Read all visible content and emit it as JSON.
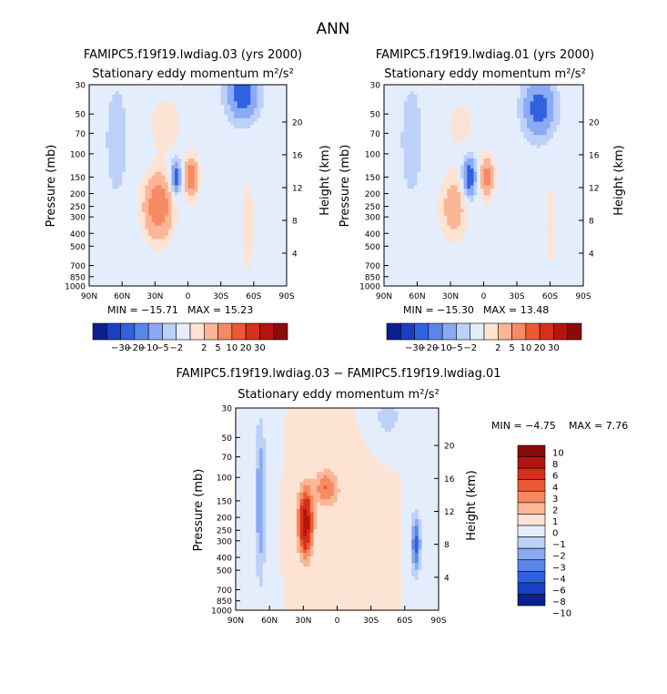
{
  "page_title": "ANN",
  "palette": {
    "cb_top": [
      "#0b1f8f",
      "#1a3fc4",
      "#2f62e0",
      "#5a86ec",
      "#8aaaf3",
      "#bcd0f8",
      "#e4edfc",
      "#fde3d4",
      "#fab696",
      "#f68a63",
      "#eb5a32",
      "#d6301a",
      "#b5150f",
      "#8a0b0b"
    ],
    "cb_diff": [
      "#8a0b0b",
      "#b5150f",
      "#d6301a",
      "#eb5a32",
      "#f68a63",
      "#fab696",
      "#fde3d4",
      "#e4edfc",
      "#bcd0f8",
      "#8aaaf3",
      "#5a86ec",
      "#2f62e0",
      "#1a3fc4",
      "#0b1f8f"
    ],
    "plot_bg": "#e4edfc"
  },
  "chart_data": [
    {
      "id": "panel-left",
      "type": "heatmap",
      "title": "FAMIPC5.f19f19.lwdiag.03 (yrs 2000)",
      "subtitle": "Stationary eddy momentum m²/s²",
      "xlabel": "",
      "ylabel": "Pressure (mb)",
      "ylabel_right": "Height (km)",
      "xlim": [
        90,
        -90
      ],
      "ylim_mb": [
        1000,
        30
      ],
      "x_ticks": [
        "90N",
        "60N",
        "30N",
        "0",
        "30S",
        "60S",
        "90S"
      ],
      "y_ticks": [
        "30",
        "50",
        "70",
        "100",
        "150",
        "200",
        "250",
        "300",
        "400",
        "500",
        "700",
        "850",
        "1000"
      ],
      "height_ticks": [
        "20",
        "16",
        "12",
        "8",
        "4"
      ],
      "min_label": "MIN = −15.71",
      "max_label": "MAX =  15.23",
      "colorbar_labels": [
        "−30",
        "−20",
        "−10",
        "−5",
        "−2",
        "2",
        "5",
        "10",
        "20",
        "30"
      ],
      "features": [
        {
          "lat": 27,
          "p": 250,
          "value": 15,
          "rx": 13,
          "ry": 0.55
        },
        {
          "lat": -3,
          "p": 150,
          "value": 14,
          "rx": 6,
          "ry": 0.35
        },
        {
          "lat": 11,
          "p": 150,
          "value": -14,
          "rx": 5,
          "ry": 0.3
        },
        {
          "lat": -50,
          "p": 35,
          "value": -14,
          "rx": 14,
          "ry": 0.45
        },
        {
          "lat": 65,
          "p": 80,
          "value": -5,
          "rx": 9,
          "ry": 0.9
        },
        {
          "lat": -55,
          "p": 350,
          "value": 4,
          "rx": 5,
          "ry": 1.0
        },
        {
          "lat": 20,
          "p": 60,
          "value": 4,
          "rx": 15,
          "ry": 0.5
        }
      ]
    },
    {
      "id": "panel-right",
      "type": "heatmap",
      "title": "FAMIPC5.f19f19.lwdiag.01 (yrs 2000)",
      "subtitle": "Stationary eddy momentum m²/s²",
      "xlabel": "",
      "ylabel": "Pressure (mb)",
      "ylabel_right": "Height (km)",
      "xlim": [
        90,
        -90
      ],
      "ylim_mb": [
        1000,
        30
      ],
      "x_ticks": [
        "90N",
        "60N",
        "30N",
        "0",
        "30S",
        "60S",
        "90S"
      ],
      "y_ticks": [
        "30",
        "50",
        "70",
        "100",
        "150",
        "200",
        "250",
        "300",
        "400",
        "500",
        "700",
        "850",
        "1000"
      ],
      "height_ticks": [
        "20",
        "16",
        "12",
        "8",
        "4"
      ],
      "min_label": "MIN = −15.30",
      "max_label": "MAX =  13.48",
      "colorbar_labels": [
        "−30",
        "−20",
        "−10",
        "−5",
        "−2",
        "2",
        "5",
        "10",
        "20",
        "30"
      ],
      "features": [
        {
          "lat": 27,
          "p": 250,
          "value": 8,
          "rx": 12,
          "ry": 0.55
        },
        {
          "lat": -3,
          "p": 150,
          "value": 13,
          "rx": 6,
          "ry": 0.35
        },
        {
          "lat": 13,
          "p": 150,
          "value": -15,
          "rx": 6,
          "ry": 0.35
        },
        {
          "lat": -50,
          "p": 45,
          "value": -13,
          "rx": 14,
          "ry": 0.5
        },
        {
          "lat": 65,
          "p": 80,
          "value": -5,
          "rx": 9,
          "ry": 0.9
        },
        {
          "lat": -60,
          "p": 350,
          "value": 3,
          "rx": 5,
          "ry": 1.0
        },
        {
          "lat": 20,
          "p": 60,
          "value": 3,
          "rx": 15,
          "ry": 0.5
        }
      ]
    },
    {
      "id": "panel-diff",
      "type": "heatmap",
      "title": "FAMIPC5.f19f19.lwdiag.03 − FAMIPC5.f19f19.lwdiag.01",
      "subtitle": "Stationary eddy momentum m²/s²",
      "xlabel": "",
      "ylabel": "Pressure (mb)",
      "ylabel_right": "Height (km)",
      "xlim": [
        90,
        -90
      ],
      "ylim_mb": [
        1000,
        30
      ],
      "x_ticks": [
        "90N",
        "60N",
        "30N",
        "0",
        "30S",
        "60S",
        "90S"
      ],
      "y_ticks": [
        "30",
        "50",
        "70",
        "100",
        "150",
        "200",
        "250",
        "300",
        "400",
        "500",
        "700",
        "850",
        "1000"
      ],
      "height_ticks": [
        "20",
        "16",
        "12",
        "8",
        "4"
      ],
      "min_label": "MIN =  −4.75",
      "max_label": "MAX =   7.76",
      "colorbar_labels": [
        "10",
        "8",
        "6",
        "4",
        "3",
        "2",
        "1",
        "0",
        "−1",
        "−2",
        "−3",
        "−4",
        "−6",
        "−8",
        "−10"
      ],
      "features": [
        {
          "lat": 28,
          "p": 220,
          "value": 7.5,
          "rx": 6,
          "ry": 0.55
        },
        {
          "lat": 10,
          "p": 120,
          "value": 3,
          "rx": 10,
          "ry": 0.3
        },
        {
          "lat": 68,
          "p": 150,
          "value": -3,
          "rx": 5,
          "ry": 1.4
        },
        {
          "lat": -70,
          "p": 320,
          "value": -4.5,
          "rx": 4,
          "ry": 0.5
        },
        {
          "lat": -45,
          "p": 35,
          "value": -2,
          "rx": 10,
          "ry": 0.3
        },
        {
          "lat": -10,
          "p": 300,
          "value": 1,
          "rx": 15,
          "ry": 0.8
        }
      ]
    }
  ]
}
